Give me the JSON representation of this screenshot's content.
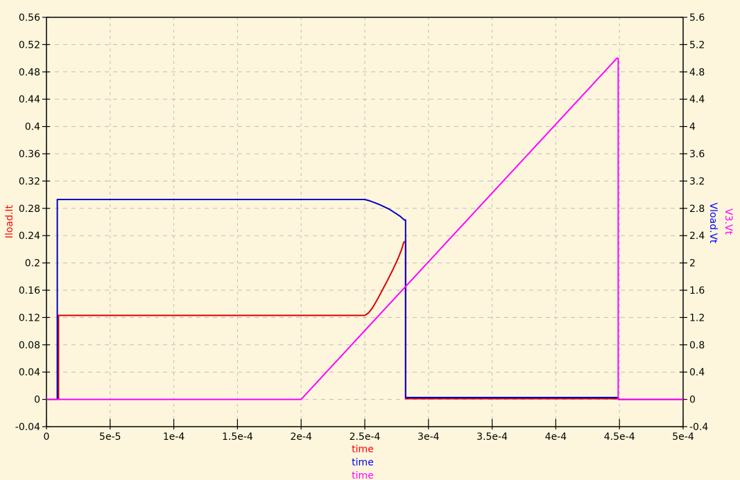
{
  "window": {
    "background_color": "#fdf6dc",
    "axis_color": "#000000",
    "grid_color": "#bdbdbd"
  },
  "chart_data": {
    "type": "line",
    "title": "",
    "grid": true,
    "legend_position": "axis-labels-rotated",
    "x": {
      "axis_label": "time",
      "range": [
        0,
        0.0005
      ],
      "tick_labels": [
        "0",
        "5e-5",
        "1e-4",
        "1.5e-4",
        "2e-4",
        "2.5e-4",
        "3e-4",
        "3.5e-4",
        "4e-4",
        "4.5e-4",
        "5e-4"
      ]
    },
    "y_left": {
      "axis_label": "Iload.It",
      "label_color": "#ff0000",
      "range": [
        -0.04,
        0.56
      ],
      "tick_labels": [
        "0.56",
        "0.52",
        "0.48",
        "0.44",
        "0.4",
        "0.36",
        "0.32",
        "0.28",
        "0.24",
        "0.2",
        "0.16",
        "0.12",
        "0.08",
        "0.04",
        "0",
        "-0.04"
      ]
    },
    "y_right": {
      "axis_labels": [
        {
          "text": "V3.Vt",
          "color": "#ff00ff"
        },
        {
          "text": "Vload.Vt",
          "color": "#0000ff"
        }
      ],
      "range": [
        -0.4,
        5.6
      ],
      "tick_labels": [
        "5.6",
        "5.2",
        "4.8",
        "4.4",
        "4",
        "3.6",
        "3.2",
        "2.8",
        "2.4",
        "2",
        "1.6",
        "1.2",
        "0.8",
        "0.4",
        "0",
        "-0.4"
      ]
    },
    "x_axis_series_labels": [
      {
        "text": "time",
        "color": "#ff0000"
      },
      {
        "text": "time",
        "color": "#0000ff"
      },
      {
        "text": "time",
        "color": "#ff00ff"
      }
    ],
    "series": [
      {
        "name": "Iload.It",
        "axis": "left",
        "color": "#dd0000",
        "points": [
          [
            0,
            0
          ],
          [
            9.5e-06,
            0
          ],
          [
            9.5e-06,
            0.123
          ],
          [
            0.00025,
            0.123
          ],
          [
            0.000253,
            0.127
          ],
          [
            0.000256,
            0.134
          ],
          [
            0.00026,
            0.147
          ],
          [
            0.000264,
            0.161
          ],
          [
            0.000268,
            0.175
          ],
          [
            0.000272,
            0.19
          ],
          [
            0.000276,
            0.206
          ],
          [
            0.000279,
            0.22
          ],
          [
            0.0002805,
            0.23
          ],
          [
            0.000282,
            0.232
          ],
          [
            0.000282,
            0.001
          ],
          [
            0.000449,
            0.001
          ],
          [
            0.000449,
            0
          ],
          [
            0.0005,
            0
          ]
        ]
      },
      {
        "name": "Vload.Vt",
        "axis": "right",
        "color": "#0000cc",
        "points": [
          [
            0,
            0
          ],
          [
            8.5e-06,
            0
          ],
          [
            8.5e-06,
            2.93
          ],
          [
            0.00025,
            2.93
          ],
          [
            0.000254,
            2.91
          ],
          [
            0.000261,
            2.86
          ],
          [
            0.000269,
            2.79
          ],
          [
            0.000274,
            2.73
          ],
          [
            0.000278,
            2.68
          ],
          [
            0.000281,
            2.63
          ],
          [
            0.000282,
            2.63
          ],
          [
            0.000282,
            0.027
          ],
          [
            0.000449,
            0.027
          ],
          [
            0.000449,
            0
          ],
          [
            0.0005,
            0
          ]
        ]
      },
      {
        "name": "V3.Vt",
        "axis": "right",
        "color": "#ff00ff",
        "points": [
          [
            0,
            0
          ],
          [
            0.0002,
            0
          ],
          [
            0.000448,
            5.0
          ],
          [
            0.000449,
            5.0
          ],
          [
            0.000449,
            0
          ],
          [
            0.0005,
            0
          ]
        ]
      }
    ]
  }
}
